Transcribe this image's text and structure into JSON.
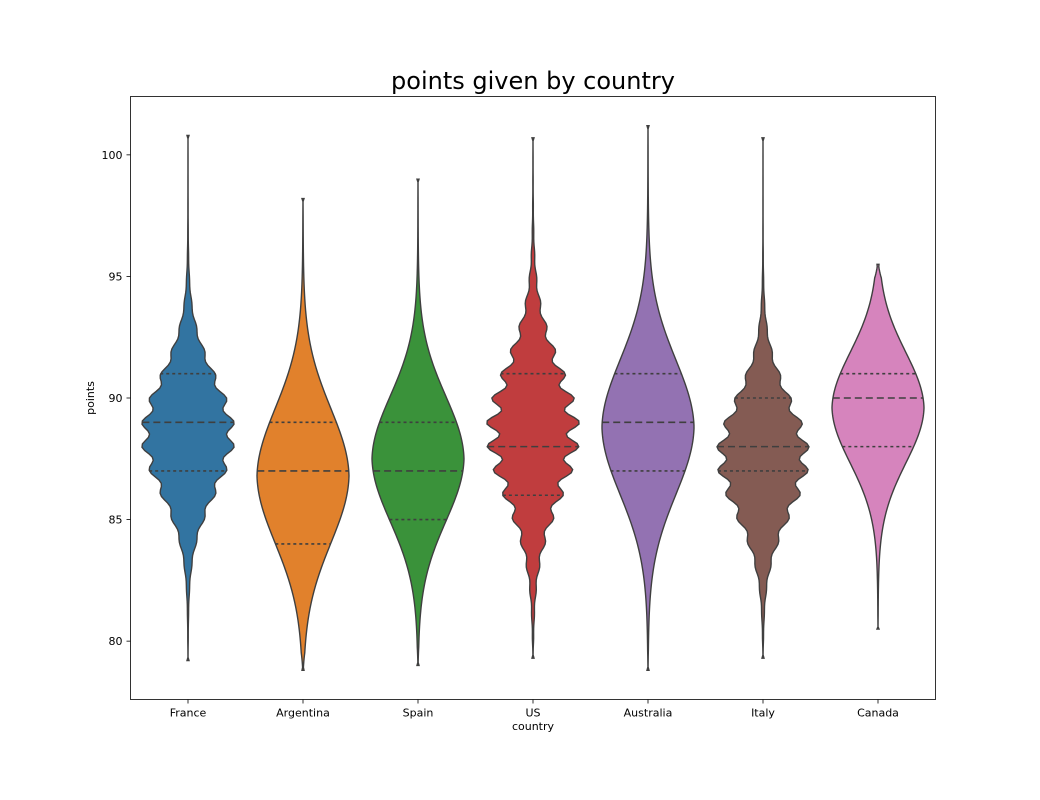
{
  "chart_data": {
    "type": "violin",
    "title": "points given by country",
    "xlabel": "country",
    "ylabel": "points",
    "categories": [
      "France",
      "Argentina",
      "Spain",
      "US",
      "Australia",
      "Italy",
      "Canada"
    ],
    "colors": [
      "#3274a1",
      "#e1812c",
      "#3a923a",
      "#c03d3e",
      "#9372b2",
      "#845b53",
      "#d684bd"
    ],
    "ylim": [
      77.6,
      102.4
    ],
    "yticks": [
      80,
      85,
      90,
      95,
      100
    ],
    "inner": "quartile",
    "grid": false,
    "series": [
      {
        "category": "France",
        "min": 79.2,
        "max": 100.8,
        "q1": 87,
        "median": 89,
        "q3": 91
      },
      {
        "category": "Argentina",
        "min": 78.8,
        "max": 98.2,
        "q1": 84,
        "median": 87,
        "q3": 89
      },
      {
        "category": "Spain",
        "min": 79.0,
        "max": 99.0,
        "q1": 85,
        "median": 87,
        "q3": 89
      },
      {
        "category": "US",
        "min": 79.3,
        "max": 100.7,
        "q1": 86,
        "median": 88,
        "q3": 91
      },
      {
        "category": "Australia",
        "min": 78.8,
        "max": 101.2,
        "q1": 87,
        "median": 89,
        "q3": 91
      },
      {
        "category": "Italy",
        "min": 79.3,
        "max": 100.7,
        "q1": 87,
        "median": 88,
        "q3": 90
      },
      {
        "category": "Canada",
        "min": 80.5,
        "max": 95.5,
        "q1": 88,
        "median": 90,
        "q3": 91
      }
    ]
  }
}
